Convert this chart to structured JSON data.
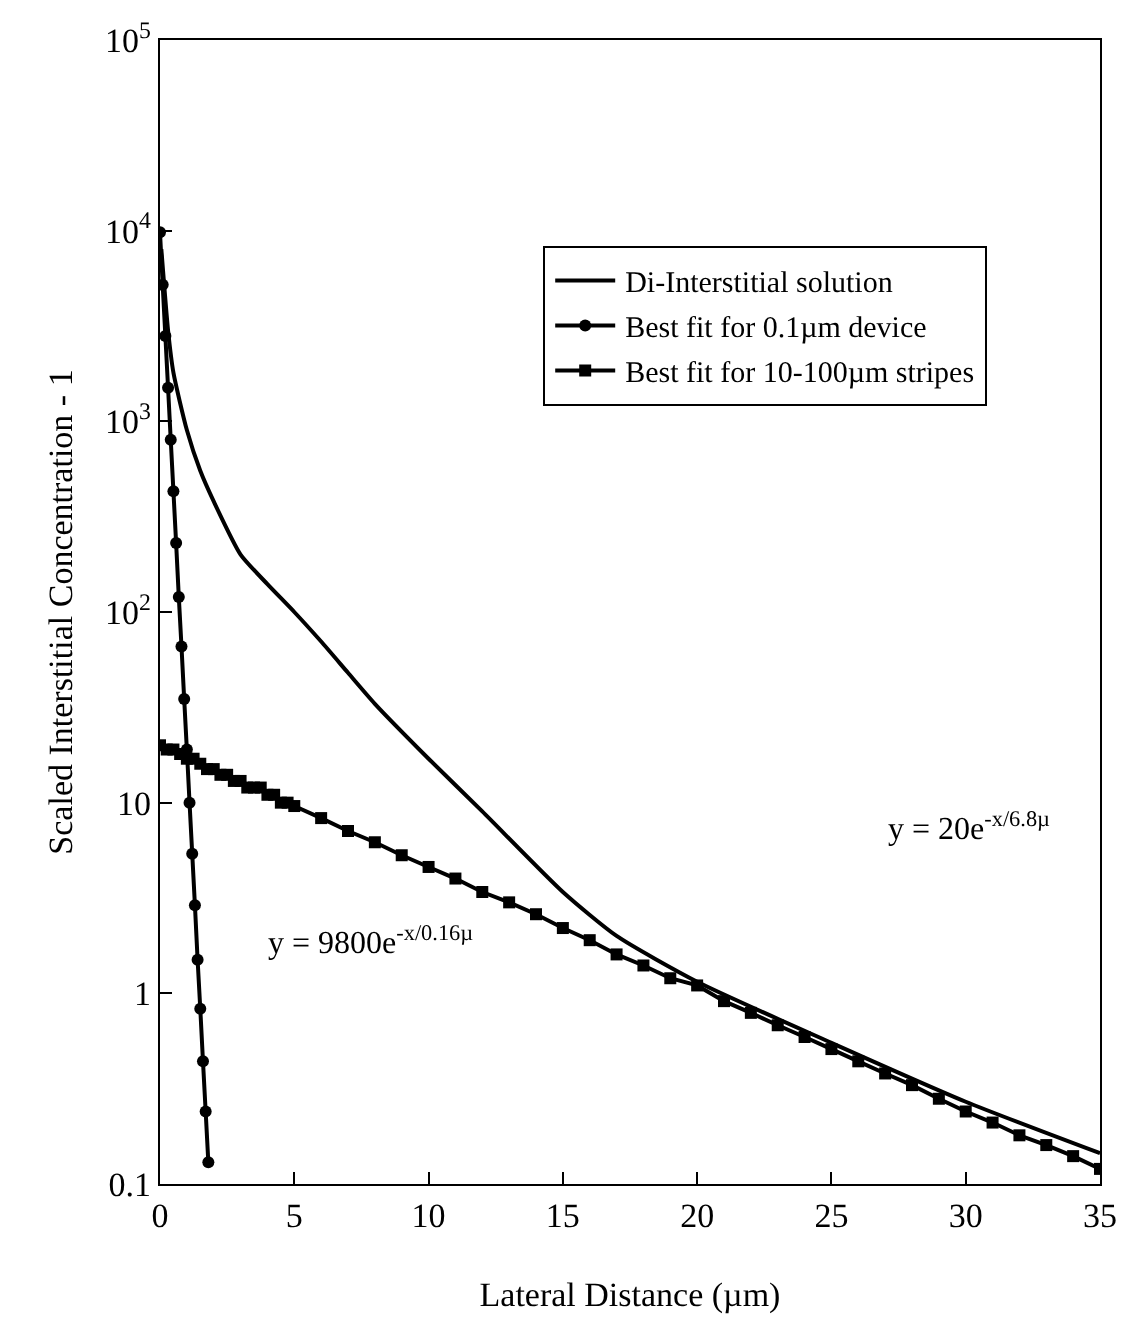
{
  "chart_data": {
    "type": "line",
    "xlabel": "Lateral Distance (µm)",
    "ylabel": "Scaled Interstitial Concentration - 1",
    "log": "y",
    "xlim": [
      0,
      35
    ],
    "xticks": [
      0,
      5,
      10,
      15,
      20,
      25,
      30,
      35
    ],
    "ylim": [
      0.1,
      100000
    ],
    "yticks": [
      0.1,
      1,
      10,
      {
        "value": 100,
        "label": "10$^{2}$"
      },
      {
        "value": 1000,
        "label": "10$^{3}$"
      },
      {
        "value": 10000,
        "label": "10$^{4}$"
      },
      {
        "value": 100000,
        "label": "10$^{5}$"
      }
    ],
    "grid": false,
    "legend": "top right",
    "series": [
      {
        "name": "Di-Interstitial solution",
        "color": "#000000",
        "marker": "none",
        "x": [
          0.05,
          0.3,
          0.5,
          1,
          1.5,
          2,
          3,
          4,
          5,
          6,
          7,
          8,
          10,
          12,
          15,
          17,
          20,
          25,
          30,
          35
        ],
        "values": [
          8000,
          3000,
          1800,
          900,
          550,
          380,
          200,
          140,
          100,
          70,
          48,
          33,
          17,
          9,
          3.4,
          2.0,
          1.15,
          0.55,
          0.27,
          0.145
        ]
      },
      {
        "name": "Best fit for 0.1µm device",
        "color": "#000000",
        "marker": "circle",
        "x": [
          0,
          0.1,
          0.2,
          0.3,
          0.4,
          0.5,
          0.6,
          0.7,
          0.8,
          0.9,
          1.0,
          1.1,
          1.2,
          1.3,
          1.4,
          1.5,
          1.6,
          1.7,
          1.8
        ],
        "values": [
          9800,
          5200,
          2800,
          1500,
          800,
          430,
          230,
          120,
          66,
          35,
          19,
          10,
          5.4,
          2.9,
          1.5,
          0.83,
          0.44,
          0.24,
          0.13
        ]
      },
      {
        "name": "Best fit for 10-100µm stripes",
        "color": "#000000",
        "marker": "square",
        "x": [
          0,
          0.25,
          0.5,
          0.75,
          1,
          1.25,
          1.5,
          1.75,
          2,
          2.25,
          2.5,
          2.75,
          3,
          3.25,
          3.5,
          3.75,
          4,
          4.25,
          4.5,
          4.75,
          5,
          6,
          7,
          8,
          9,
          10,
          11,
          12,
          13,
          14,
          15,
          16,
          17,
          18,
          19,
          20,
          21,
          22,
          23,
          24,
          25,
          26,
          27,
          28,
          29,
          30,
          31,
          32,
          33,
          34,
          35
        ],
        "values": [
          20,
          19,
          19,
          18,
          17,
          17,
          16,
          15,
          15,
          14,
          14,
          13,
          13,
          12,
          12,
          12,
          11,
          11,
          10,
          10,
          9.6,
          8.3,
          7.1,
          6.2,
          5.3,
          4.6,
          4.0,
          3.4,
          3.0,
          2.6,
          2.2,
          1.9,
          1.6,
          1.4,
          1.2,
          1.1,
          0.91,
          0.79,
          0.68,
          0.59,
          0.51,
          0.44,
          0.38,
          0.33,
          0.28,
          0.24,
          0.21,
          0.18,
          0.16,
          0.14,
          0.12
        ]
      }
    ],
    "annotations": [
      "y = 9800e$^{-x/0.16µ}$",
      "y = 20e$^{-x/6.8µ}$"
    ]
  }
}
